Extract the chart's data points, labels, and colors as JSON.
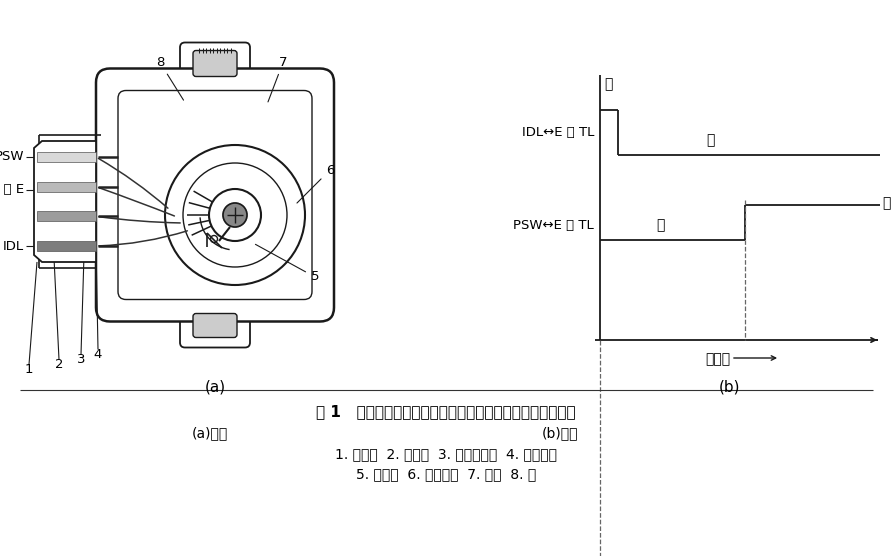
{
  "title": "图 1   开关量输出型节气门位置传感器的结构与电压输出信号",
  "sub_a": "(a)结构",
  "sub_b": "(b)特性",
  "caption_line1": "1. 连接器  2. 动触点  3. 全负荷触点  4. 息速触点",
  "caption_line2": "5. 控制臂  6. 节气门轴  7. 凸轮  8. 槽",
  "idl_label": "IDL↔E 或 TL",
  "psw_label": "PSW↔E 或 TL",
  "tong1": "通",
  "duan1": "断",
  "tong2": "通",
  "duan2": "断",
  "jieqimen": "节气门",
  "bg_color": "#ffffff",
  "line_color": "#1a1a1a",
  "label_a": "(a)",
  "label_b": "(b)",
  "psw_text": "PSW",
  "tle_text": "TL 或 E",
  "idl_text": "IDL"
}
